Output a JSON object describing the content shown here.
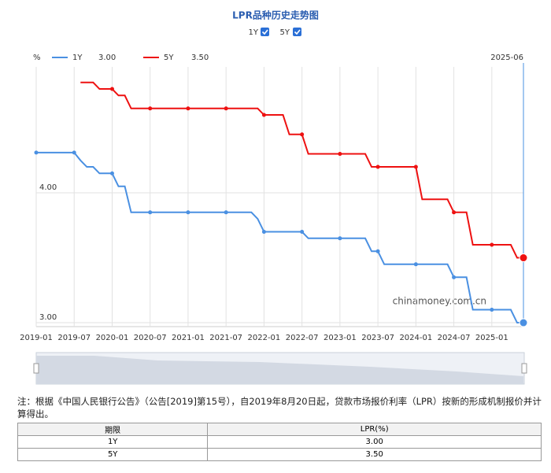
{
  "chart_data": {
    "type": "line",
    "title": "LPR品种历史走势图",
    "unit": "%",
    "cursor_label": "2025-06",
    "watermark": "chinamoney.com.cn",
    "categories": [
      "2019-01",
      null,
      null,
      null,
      null,
      null,
      "2019-07",
      null,
      null,
      null,
      null,
      null,
      "2020-01",
      null,
      null,
      null,
      null,
      null,
      "2020-07",
      null,
      null,
      null,
      null,
      null,
      "2021-01",
      null,
      null,
      null,
      null,
      null,
      "2021-07",
      null,
      null,
      null,
      null,
      null,
      "2022-01",
      null,
      null,
      null,
      null,
      null,
      "2022-07",
      null,
      null,
      null,
      null,
      null,
      "2023-01",
      null,
      null,
      null,
      null,
      null,
      "2023-07",
      null,
      null,
      null,
      null,
      null,
      "2024-01",
      null,
      null,
      null,
      null,
      null,
      "2024-07",
      null,
      null,
      null,
      null,
      null,
      "2025-01",
      null,
      null,
      null,
      null,
      null
    ],
    "series": [
      {
        "name": "1Y",
        "current": "3.00",
        "color": "#4a90e2",
        "values": [
          4.31,
          4.31,
          4.31,
          4.31,
          4.31,
          4.31,
          4.31,
          4.25,
          4.2,
          4.2,
          4.15,
          4.15,
          4.15,
          4.05,
          4.05,
          3.85,
          3.85,
          3.85,
          3.85,
          3.85,
          3.85,
          3.85,
          3.85,
          3.85,
          3.85,
          3.85,
          3.85,
          3.85,
          3.85,
          3.85,
          3.85,
          3.85,
          3.85,
          3.85,
          3.85,
          3.8,
          3.7,
          3.7,
          3.7,
          3.7,
          3.7,
          3.7,
          3.7,
          3.65,
          3.65,
          3.65,
          3.65,
          3.65,
          3.65,
          3.65,
          3.65,
          3.65,
          3.65,
          3.55,
          3.55,
          3.45,
          3.45,
          3.45,
          3.45,
          3.45,
          3.45,
          3.45,
          3.45,
          3.45,
          3.45,
          3.45,
          3.35,
          3.35,
          3.35,
          3.1,
          3.1,
          3.1,
          3.1,
          3.1,
          3.1,
          3.1,
          3.0,
          3.0
        ]
      },
      {
        "name": "5Y",
        "current": "3.50",
        "color": "#ee1111",
        "values": [
          null,
          null,
          null,
          null,
          null,
          null,
          null,
          4.85,
          4.85,
          4.85,
          4.8,
          4.8,
          4.8,
          4.75,
          4.75,
          4.65,
          4.65,
          4.65,
          4.65,
          4.65,
          4.65,
          4.65,
          4.65,
          4.65,
          4.65,
          4.65,
          4.65,
          4.65,
          4.65,
          4.65,
          4.65,
          4.65,
          4.65,
          4.65,
          4.65,
          4.65,
          4.6,
          4.6,
          4.6,
          4.6,
          4.45,
          4.45,
          4.45,
          4.3,
          4.3,
          4.3,
          4.3,
          4.3,
          4.3,
          4.3,
          4.3,
          4.3,
          4.3,
          4.2,
          4.2,
          4.2,
          4.2,
          4.2,
          4.2,
          4.2,
          4.2,
          3.95,
          3.95,
          3.95,
          3.95,
          3.95,
          3.85,
          3.85,
          3.85,
          3.6,
          3.6,
          3.6,
          3.6,
          3.6,
          3.6,
          3.6,
          3.5,
          3.5
        ]
      }
    ],
    "ylim": [
      2.97,
      4.97
    ],
    "yticks": [
      {
        "value": 3,
        "label": "3.00"
      },
      {
        "value": 4,
        "label": "4.00"
      }
    ],
    "grid": true
  },
  "note": "注：根据《中国人民银行公告》（公告[2019]第15号），自2019年8月20日起，贷款市场报价利率（LPR）按新的形成机制报价并计算得出。",
  "table": {
    "header": [
      "期限",
      "LPR(%)"
    ],
    "rows": [
      [
        "1Y",
        "3.00"
      ],
      [
        "5Y",
        "3.50"
      ]
    ]
  }
}
